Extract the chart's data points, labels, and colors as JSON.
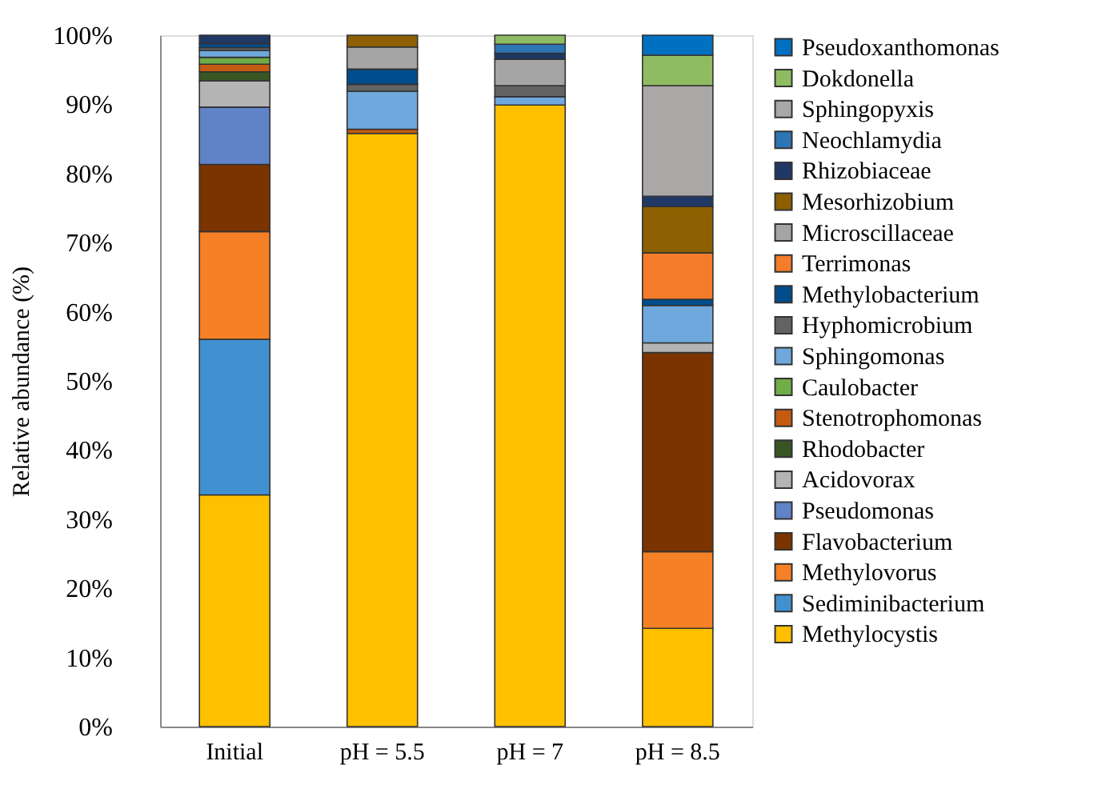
{
  "chart_data": {
    "type": "bar",
    "stacked": true,
    "ylabel": "Relative abundance (%)",
    "categories": [
      "Initial",
      "pH = 5.5",
      "pH = 7",
      "pH = 8.5"
    ],
    "ylim": [
      0,
      100
    ],
    "yticks": [
      {
        "value": 0,
        "label": "0%"
      },
      {
        "value": 10,
        "label": "10%"
      },
      {
        "value": 20,
        "label": "20%"
      },
      {
        "value": 30,
        "label": "30%"
      },
      {
        "value": 40,
        "label": "40%"
      },
      {
        "value": 50,
        "label": "50%"
      },
      {
        "value": 60,
        "label": "60%"
      },
      {
        "value": 70,
        "label": "70%"
      },
      {
        "value": 80,
        "label": "80%"
      },
      {
        "value": 90,
        "label": "90%"
      },
      {
        "value": 100,
        "label": "100%"
      }
    ],
    "grid": false,
    "legend": "right",
    "series": [
      {
        "name": "Methylocystis",
        "color": "#ffc000",
        "values": [
          33.5,
          85.8,
          89.9,
          14.2
        ]
      },
      {
        "name": "Sediminibacterium",
        "color": "#4191d1",
        "values": [
          22.5,
          0,
          0,
          0
        ]
      },
      {
        "name": "Methylovorus",
        "color": "#f58025",
        "values": [
          15.6,
          0,
          0,
          11.1
        ]
      },
      {
        "name": "Flavobacterium",
        "color": "#7b3300",
        "values": [
          9.7,
          0,
          0,
          28.8
        ]
      },
      {
        "name": "Pseudomonas",
        "color": "#6083c8",
        "values": [
          8.3,
          0,
          0,
          0
        ]
      },
      {
        "name": "Acidovorax",
        "color": "#b4b4b4",
        "values": [
          3.8,
          0,
          0,
          1.4
        ]
      },
      {
        "name": "Rhodobacter",
        "color": "#375623",
        "values": [
          1.3,
          0,
          0,
          0
        ]
      },
      {
        "name": "Stenotrophomonas",
        "color": "#c55a11",
        "values": [
          1.1,
          0.6,
          0,
          0
        ]
      },
      {
        "name": "Caulobacter",
        "color": "#70ad47",
        "values": [
          1.0,
          0,
          0,
          0
        ]
      },
      {
        "name": "Sphingomonas",
        "color": "#6fa8dc",
        "values": [
          1.0,
          5.5,
          1.2,
          5.4
        ]
      },
      {
        "name": "Hyphomicrobium",
        "color": "#636363",
        "values": [
          0.4,
          1.0,
          1.6,
          0
        ]
      },
      {
        "name": "Methylobacterium",
        "color": "#004c8c",
        "values": [
          0.6,
          2.2,
          null,
          0.9
        ]
      },
      {
        "name": "Terrimonas",
        "color": "#f47c2a",
        "values": [
          0,
          0,
          0,
          6.7
        ]
      },
      {
        "name": "Microscillaceae",
        "color": "#a5a5a5",
        "values": [
          null,
          3.2,
          3.8,
          0
        ]
      },
      {
        "name": "Mesorhizobium",
        "color": "#8c6000",
        "values": [
          0,
          1.7,
          0,
          6.7
        ]
      },
      {
        "name": "Rhizobiaceae",
        "color": "#1f3864",
        "values": [
          1.2,
          0,
          0.9,
          1.5
        ]
      },
      {
        "name": "Neochlamydia",
        "color": "#2e75b6",
        "values": [
          0,
          0,
          1.3,
          0
        ]
      },
      {
        "name": "Sphingopyxis",
        "color": "#aaa7a7",
        "values": [
          0,
          0,
          0,
          16.0
        ]
      },
      {
        "name": "Dokdonella",
        "color": "#8fbc62",
        "values": [
          0,
          0,
          1.3,
          4.4
        ]
      },
      {
        "name": "Pseudoxanthomonas",
        "color": "#0070c0",
        "values": [
          0,
          0,
          0,
          2.9
        ]
      }
    ]
  }
}
